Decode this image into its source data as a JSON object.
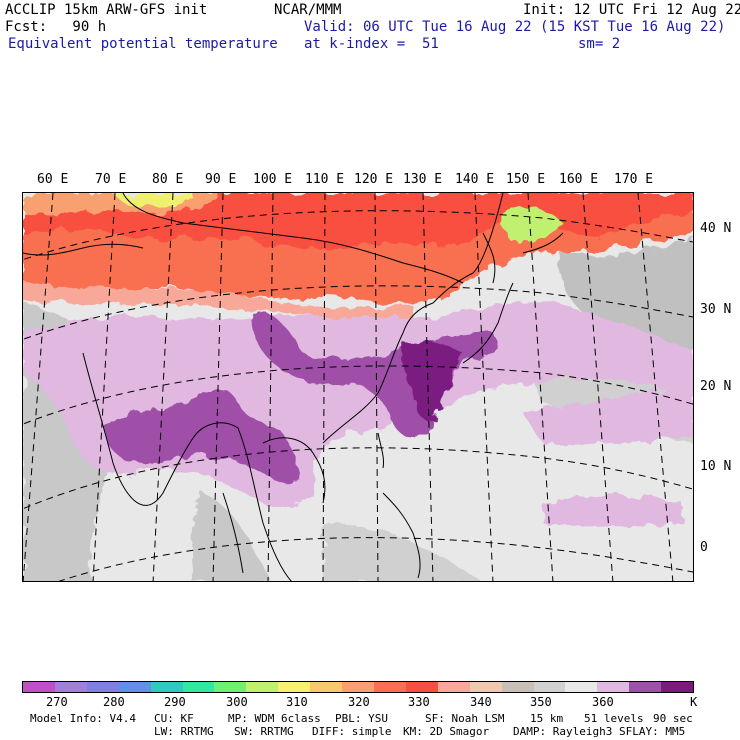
{
  "header": {
    "model": "ACCLIP 15km ARW-GFS init",
    "forecast": "Fcst:   90 h",
    "field": "Equivalent potential temperature",
    "center": "NCAR/MMM",
    "valid": "Valid: 06 UTC Tue 16 Aug 22 (15 KST Tue 16 Aug 22)",
    "level": "at k-index =  51",
    "init": "Init: 12 UTC Fri 12 Aug 22",
    "smoothing": "sm= 2"
  },
  "map": {
    "lon_labels": [
      "60 E",
      "70 E",
      "80 E",
      "90 E",
      "100 E",
      "110 E",
      "120 E",
      "130 E",
      "140 E",
      "150 E",
      "160 E",
      "170 E"
    ],
    "lat_labels": [
      "40 N",
      "30 N",
      "20 N",
      "10 N",
      "0"
    ]
  },
  "colorbar": {
    "colors": [
      "#c050c8",
      "#a080d8",
      "#8080e0",
      "#6090e8",
      "#30c8c0",
      "#30e8a0",
      "#70f070",
      "#c0f070",
      "#f8f070",
      "#f8c870",
      "#f8a070",
      "#f87050",
      "#f85040",
      "#f8a898",
      "#f0c8b0",
      "#c8c0b8",
      "#d0d0d0",
      "#e8e8e8",
      "#e0b8e0",
      "#a050a8",
      "#7a1a80"
    ],
    "labels": [
      "270",
      "280",
      "290",
      "300",
      "310",
      "320",
      "330",
      "340",
      "350",
      "360",
      "K"
    ]
  },
  "footer": {
    "model_info": "Model Info: V4.4",
    "cu": "CU: KF",
    "mp": "MP: WDM 6class",
    "pbl": "PBL: YSU",
    "sf": "SF: Noah LSM",
    "dx": "15 km",
    "levels": "51 levels",
    "dt": "90 sec",
    "lw": "LW: RRTMG",
    "sw": "SW: RRTMG",
    "diff": "DIFF: simple",
    "km": "KM: 2D Smagor",
    "damp": "DAMP: Rayleigh3",
    "sflay": "SFLAY: MM5"
  }
}
